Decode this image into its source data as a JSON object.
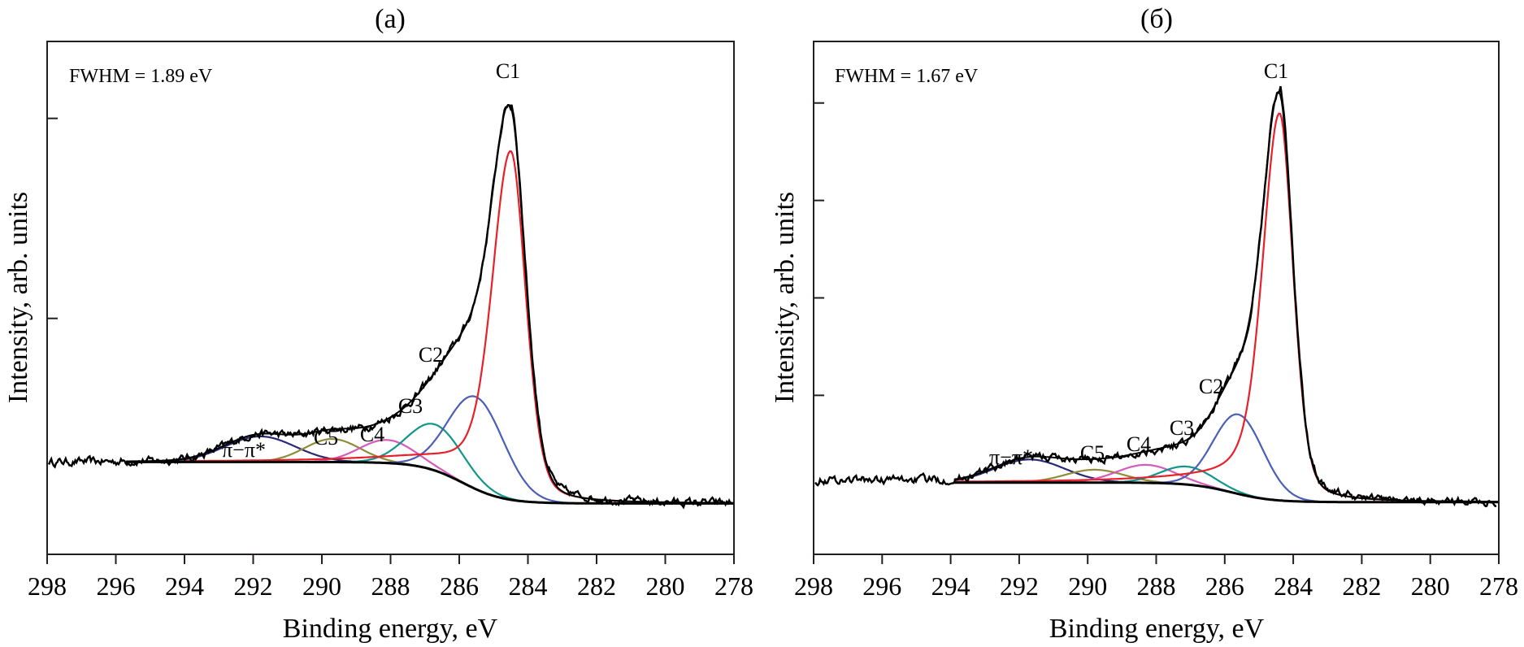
{
  "chart_data": [
    {
      "type": "line",
      "panel_label": "(a)",
      "title": "(a)",
      "xlabel": "Binding energy, eV",
      "ylabel": "Intensity, arb. units",
      "xlim": [
        298,
        278
      ],
      "x_reversed": true,
      "xticks": [
        298,
        296,
        294,
        292,
        290,
        288,
        286,
        284,
        282,
        280,
        278
      ],
      "ylim": [
        0,
        1.0
      ],
      "yticks": [
        0.46,
        0.85
      ],
      "yticklabels": [],
      "grid": false,
      "legend": "none",
      "fwhm_annotation": "FWHM = 1.89 eV",
      "background": {
        "name": "Shirley background",
        "color": "#000000",
        "high_be_level": 0.18,
        "low_be_level": 0.085,
        "start_eV": 295.7
      },
      "raw_left_level": 0.18,
      "raw_right_level": 0.085,
      "envelope_color": "#000000",
      "components": [
        {
          "name": "C1",
          "label": "C1",
          "center_eV": 284.5,
          "height": 0.68,
          "fwhm_eV": 1.1,
          "shape": "asymmetric",
          "color": "#e8202a"
        },
        {
          "name": "C2",
          "label": "C2",
          "center_eV": 285.5,
          "height": 0.18,
          "fwhm_eV": 1.9,
          "shape": "gaussian",
          "color": "#4a5fb5"
        },
        {
          "name": "C3",
          "label": "C3",
          "center_eV": 286.7,
          "height": 0.09,
          "fwhm_eV": 1.9,
          "shape": "gaussian",
          "color": "#11968a"
        },
        {
          "name": "C4",
          "label": "C4",
          "center_eV": 288.1,
          "height": 0.045,
          "fwhm_eV": 1.9,
          "shape": "gaussian",
          "color": "#d65ab9"
        },
        {
          "name": "C5",
          "label": "C5",
          "center_eV": 289.7,
          "height": 0.045,
          "fwhm_eV": 1.9,
          "shape": "gaussian",
          "color": "#8f8d3a"
        },
        {
          "name": "pi-pi*",
          "label": "π−π*",
          "center_eV": 291.8,
          "height": 0.05,
          "fwhm_eV": 2.4,
          "shape": "gaussian",
          "color": "#2a2a7a"
        }
      ],
      "annotations": [
        {
          "text": "C1",
          "near_eV": 284.5
        },
        {
          "text": "C2",
          "near_eV": 286.0
        },
        {
          "text": "C3",
          "near_eV": 286.8
        },
        {
          "text": "C4",
          "near_eV": 288.0
        },
        {
          "text": "C5",
          "near_eV": 289.6
        },
        {
          "text": "π−π*",
          "near_eV": 292.0
        },
        {
          "text": "FWHM = 1.89 eV",
          "position": "top-left"
        }
      ]
    },
    {
      "type": "line",
      "panel_label": "(б)",
      "title": "(б)",
      "xlabel": "Binding energy, eV",
      "ylabel": "Intensity, arb. units",
      "xlim": [
        298,
        278
      ],
      "x_reversed": true,
      "xticks": [
        298,
        296,
        294,
        292,
        290,
        288,
        286,
        284,
        282,
        280,
        278
      ],
      "ylim": [
        0,
        1.0
      ],
      "yticks": [
        0.31,
        0.5,
        0.69,
        0.88
      ],
      "yticklabels": [],
      "grid": false,
      "legend": "none",
      "fwhm_annotation": "FWHM = 1.67 eV",
      "background": {
        "name": "Shirley background",
        "color": "#000000",
        "high_be_level": 0.14,
        "low_be_level": 0.095,
        "start_eV": 293.9
      },
      "raw_left_level": 0.145,
      "raw_right_level": 0.085,
      "envelope_color": "#000000",
      "components": [
        {
          "name": "C1",
          "label": "C1",
          "center_eV": 284.4,
          "height": 0.755,
          "fwhm_eV": 1.0,
          "shape": "asymmetric",
          "color": "#e8202a"
        },
        {
          "name": "C2",
          "label": "C2",
          "center_eV": 285.6,
          "height": 0.155,
          "fwhm_eV": 1.7,
          "shape": "gaussian",
          "color": "#4a5fb5"
        },
        {
          "name": "C3",
          "label": "C3",
          "center_eV": 287.1,
          "height": 0.035,
          "fwhm_eV": 1.8,
          "shape": "gaussian",
          "color": "#11968a"
        },
        {
          "name": "C4",
          "label": "C4",
          "center_eV": 288.3,
          "height": 0.035,
          "fwhm_eV": 2.0,
          "shape": "gaussian",
          "color": "#d65ab9"
        },
        {
          "name": "C5",
          "label": "C5",
          "center_eV": 289.8,
          "height": 0.025,
          "fwhm_eV": 2.0,
          "shape": "gaussian",
          "color": "#8f8d3a"
        },
        {
          "name": "pi-pi*",
          "label": "π−π*",
          "center_eV": 291.7,
          "height": 0.045,
          "fwhm_eV": 2.4,
          "shape": "gaussian",
          "color": "#2a2a7a"
        }
      ],
      "annotations": [
        {
          "text": "C1",
          "near_eV": 284.4
        },
        {
          "text": "C2",
          "near_eV": 286.0
        },
        {
          "text": "C3",
          "near_eV": 287.1
        },
        {
          "text": "C4",
          "near_eV": 288.4
        },
        {
          "text": "C5",
          "near_eV": 289.8
        },
        {
          "text": "π−π*",
          "near_eV": 292.0
        },
        {
          "text": "FWHM = 1.67 eV",
          "position": "top-left"
        }
      ]
    }
  ]
}
